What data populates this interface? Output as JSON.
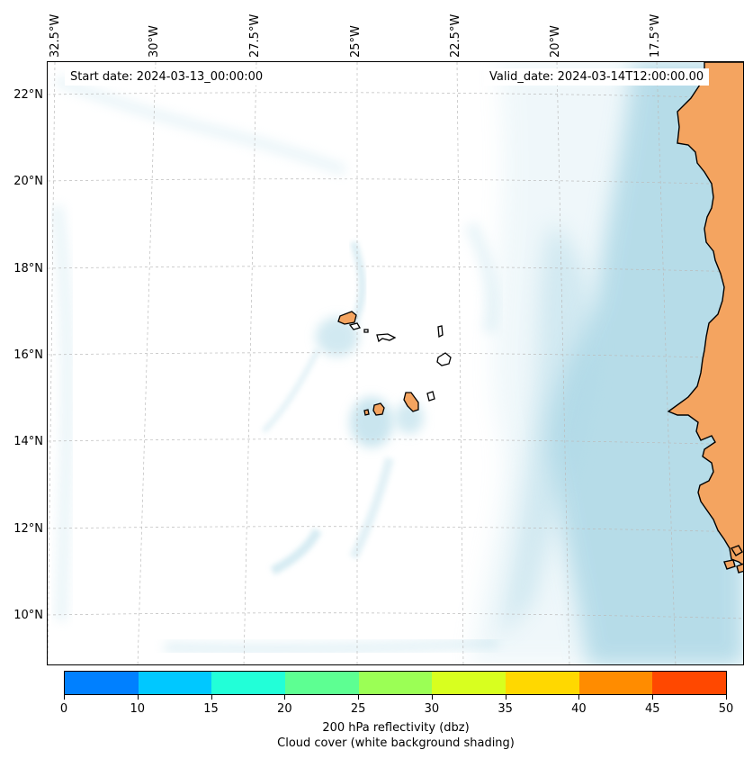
{
  "map": {
    "start_label": "Start date: 2024-03-13_00:00:00",
    "valid_label": "Valid_date: 2024-03-14T12:00:00.00",
    "longitude_labels": [
      "32.5°W",
      "30°W",
      "27.5°W",
      "25°W",
      "22.5°W",
      "20°W",
      "17.5°W"
    ],
    "latitude_labels": [
      "22°N",
      "20°N",
      "18°N",
      "16°N",
      "14°N",
      "12°N",
      "10°N"
    ],
    "colors": {
      "land": "#f4a460",
      "cloud": "#add8e6",
      "gridline": "#bbbbbb",
      "coastline": "#000000"
    },
    "features": [
      "coastline-west-africa",
      "cape-verde-islands",
      "cloud-cover-shading"
    ]
  },
  "colorbar": {
    "ticks": [
      "0",
      "10",
      "15",
      "20",
      "25",
      "30",
      "35",
      "40",
      "45",
      "50"
    ],
    "colors": [
      "#0080ff",
      "#00c8ff",
      "#22ffd8",
      "#5dff92",
      "#9bff55",
      "#d8ff1f",
      "#ffd800",
      "#ff8c00",
      "#ff4800"
    ],
    "label_line1": "200 hPa reflectivity (dbz)",
    "label_line2": "Cloud cover (white background shading)"
  }
}
